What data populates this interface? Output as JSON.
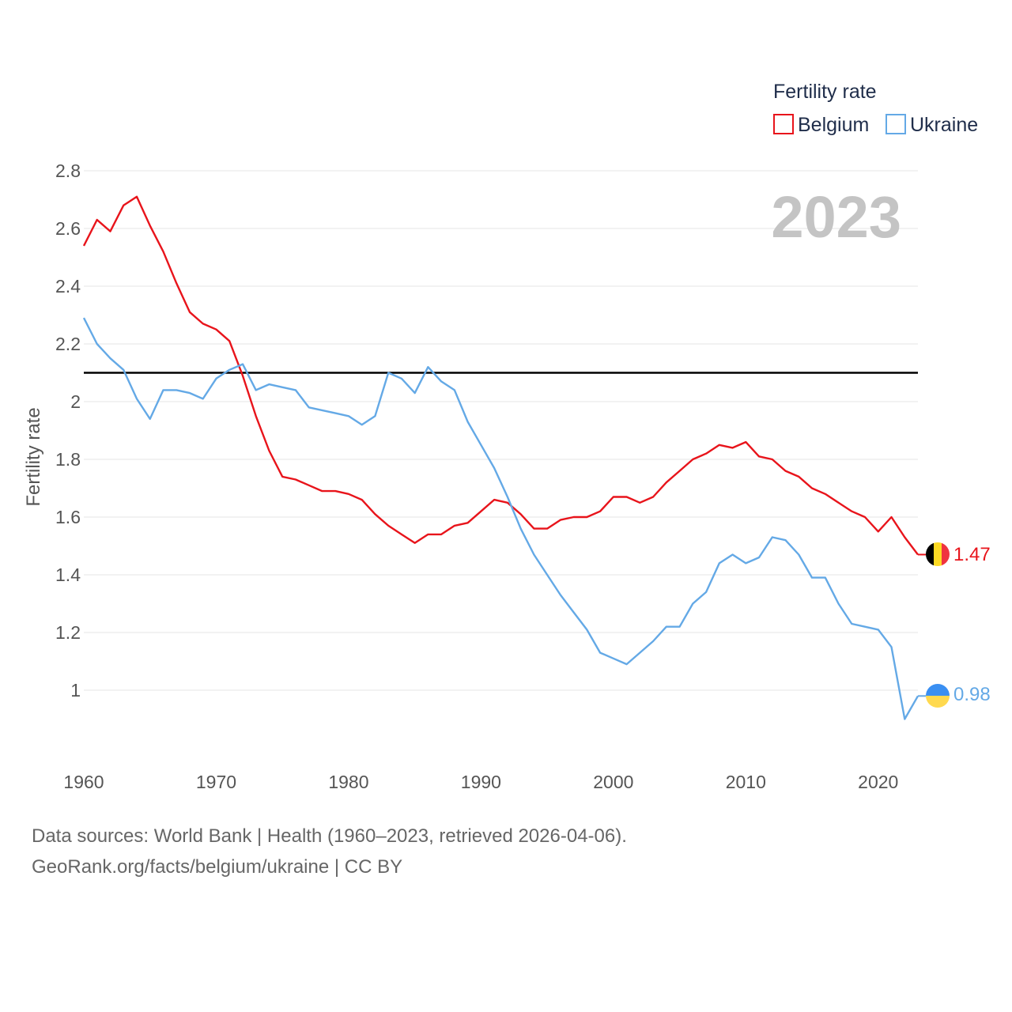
{
  "legend": {
    "title": "Fertility rate",
    "items": [
      {
        "label": "Belgium",
        "color": "#e8141b"
      },
      {
        "label": "Ukraine",
        "color": "#64a9e6"
      }
    ]
  },
  "year_label": "2023",
  "footer": {
    "line1": "Data sources: World Bank | Health (1960–2023, retrieved 2026-04-06).",
    "line2": "GeoRank.org/facts/belgium/ukraine | CC BY"
  },
  "colors": {
    "belgium": "#e8141b",
    "ukraine": "#64a9e6",
    "reference": "#000000",
    "grid": "#e6e6e6"
  },
  "chart_data": {
    "type": "line",
    "title": "",
    "xlabel": "",
    "ylabel": "Fertility rate",
    "xlim": [
      1960,
      2023
    ],
    "ylim": [
      0.78,
      2.8
    ],
    "x_ticks": [
      1960,
      1970,
      1980,
      1990,
      2000,
      2010,
      2020
    ],
    "y_ticks": [
      1,
      1.2,
      1.4,
      1.6,
      1.8,
      2,
      2.2,
      2.4,
      2.6,
      2.8
    ],
    "y_tick_labels": [
      "1",
      "1.2",
      "1.4",
      "1.6",
      "1.8",
      "2",
      "2.2",
      "2.4",
      "2.6",
      "2.8"
    ],
    "x_tick_labels": [
      "1960",
      "1970",
      "1980",
      "1990",
      "2000",
      "2010",
      "2020"
    ],
    "reference_line": 2.1,
    "x": [
      1960,
      1961,
      1962,
      1963,
      1964,
      1965,
      1966,
      1967,
      1968,
      1969,
      1970,
      1971,
      1972,
      1973,
      1974,
      1975,
      1976,
      1977,
      1978,
      1979,
      1980,
      1981,
      1982,
      1983,
      1984,
      1985,
      1986,
      1987,
      1988,
      1989,
      1990,
      1991,
      1992,
      1993,
      1994,
      1995,
      1996,
      1997,
      1998,
      1999,
      2000,
      2001,
      2002,
      2003,
      2004,
      2005,
      2006,
      2007,
      2008,
      2009,
      2010,
      2011,
      2012,
      2013,
      2014,
      2015,
      2016,
      2017,
      2018,
      2019,
      2020,
      2021,
      2022,
      2023
    ],
    "series": [
      {
        "name": "Belgium",
        "end_label": "1.47",
        "values": [
          2.54,
          2.63,
          2.59,
          2.68,
          2.71,
          2.61,
          2.52,
          2.41,
          2.31,
          2.27,
          2.25,
          2.21,
          2.09,
          1.95,
          1.83,
          1.74,
          1.73,
          1.71,
          1.69,
          1.69,
          1.68,
          1.66,
          1.61,
          1.57,
          1.54,
          1.51,
          1.54,
          1.54,
          1.57,
          1.58,
          1.62,
          1.66,
          1.65,
          1.61,
          1.56,
          1.56,
          1.59,
          1.6,
          1.6,
          1.62,
          1.67,
          1.67,
          1.65,
          1.67,
          1.72,
          1.76,
          1.8,
          1.82,
          1.85,
          1.84,
          1.86,
          1.81,
          1.8,
          1.76,
          1.74,
          1.7,
          1.68,
          1.65,
          1.62,
          1.6,
          1.55,
          1.6,
          1.53,
          1.47
        ]
      },
      {
        "name": "Ukraine",
        "end_label": "0.98",
        "values": [
          2.29,
          2.2,
          2.15,
          2.11,
          2.01,
          1.94,
          2.04,
          2.04,
          2.03,
          2.01,
          2.08,
          2.11,
          2.13,
          2.04,
          2.06,
          2.05,
          2.04,
          1.98,
          1.97,
          1.96,
          1.95,
          1.92,
          1.95,
          2.1,
          2.08,
          2.03,
          2.12,
          2.07,
          2.04,
          1.93,
          1.85,
          1.77,
          1.67,
          1.56,
          1.47,
          1.4,
          1.33,
          1.27,
          1.21,
          1.13,
          1.11,
          1.09,
          1.13,
          1.17,
          1.22,
          1.22,
          1.3,
          1.34,
          1.44,
          1.47,
          1.44,
          1.46,
          1.53,
          1.52,
          1.47,
          1.39,
          1.39,
          1.3,
          1.23,
          1.22,
          1.21,
          1.15,
          0.9,
          0.98
        ]
      }
    ]
  }
}
